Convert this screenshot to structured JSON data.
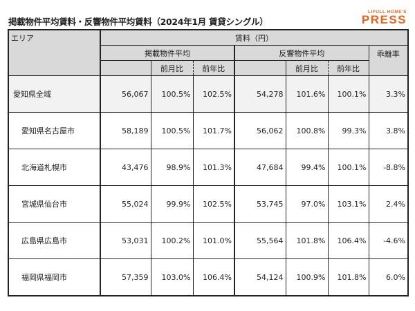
{
  "title": "掲載物件平均賃料・反響物件平均賃料（2024年1月 賃貸シングル）",
  "logo": {
    "top": "LIFULL HOME'S",
    "bottom": "PRESS",
    "color": "#e8641e"
  },
  "header": {
    "area": "エリア",
    "rent": "賃料（円）",
    "listed": "掲載物件平均",
    "inquiry": "反響物件平均",
    "gap": "乖離率",
    "mom": "前月比",
    "yoy": "前年比"
  },
  "rows": [
    {
      "area": "愛知県全域",
      "listed": "56,067",
      "listed_mom": "100.5%",
      "listed_yoy": "102.5%",
      "inquiry": "54,278",
      "inquiry_mom": "101.6%",
      "inquiry_yoy": "100.1%",
      "gap": "3.3%"
    },
    {
      "area": "愛知県名古屋市",
      "listed": "58,189",
      "listed_mom": "100.5%",
      "listed_yoy": "101.7%",
      "inquiry": "56,062",
      "inquiry_mom": "100.8%",
      "inquiry_yoy": "99.3%",
      "gap": "3.8%"
    },
    {
      "area": "北海道札幌市",
      "listed": "43,476",
      "listed_mom": "98.9%",
      "listed_yoy": "101.3%",
      "inquiry": "47,684",
      "inquiry_mom": "99.4%",
      "inquiry_yoy": "100.1%",
      "gap": "-8.8%"
    },
    {
      "area": "宮城県仙台市",
      "listed": "55,024",
      "listed_mom": "99.9%",
      "listed_yoy": "102.5%",
      "inquiry": "53,745",
      "inquiry_mom": "97.0%",
      "inquiry_yoy": "103.1%",
      "gap": "2.4%"
    },
    {
      "area": "広島県広島市",
      "listed": "53,031",
      "listed_mom": "100.2%",
      "listed_yoy": "101.0%",
      "inquiry": "55,564",
      "inquiry_mom": "101.8%",
      "inquiry_yoy": "106.4%",
      "gap": "-4.6%"
    },
    {
      "area": "福岡県福岡市",
      "listed": "57,359",
      "listed_mom": "103.0%",
      "listed_yoy": "106.4%",
      "inquiry": "54,124",
      "inquiry_mom": "100.9%",
      "inquiry_yoy": "101.8%",
      "gap": "6.0%"
    }
  ]
}
